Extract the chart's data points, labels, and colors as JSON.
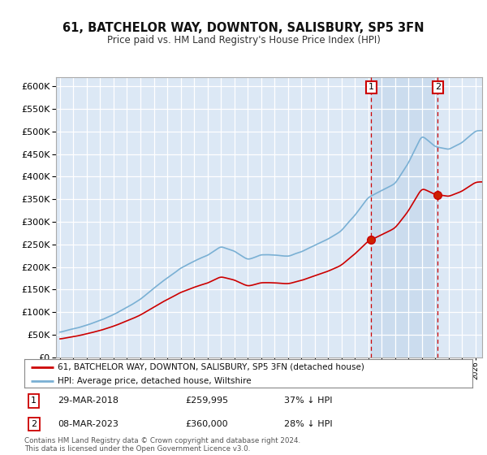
{
  "title": "61, BATCHELOR WAY, DOWNTON, SALISBURY, SP5 3FN",
  "subtitle": "Price paid vs. HM Land Registry's House Price Index (HPI)",
  "legend_line1": "61, BATCHELOR WAY, DOWNTON, SALISBURY, SP5 3FN (detached house)",
  "legend_line2": "HPI: Average price, detached house, Wiltshire",
  "sale1_date": 2018.23,
  "sale1_price": 259995,
  "sale2_date": 2023.18,
  "sale2_price": 360000,
  "footer": "Contains HM Land Registry data © Crown copyright and database right 2024.\nThis data is licensed under the Open Government Licence v3.0.",
  "ylim": [
    0,
    620000
  ],
  "yticks": [
    0,
    50000,
    100000,
    150000,
    200000,
    250000,
    300000,
    350000,
    400000,
    450000,
    500000,
    550000,
    600000
  ],
  "plot_bg": "#dce8f5",
  "line_color_red": "#cc0000",
  "line_color_blue": "#7ab0d4",
  "shade_color": "#c5d8ec",
  "grid_color": "#ffffff",
  "vline_color": "#cc0000"
}
